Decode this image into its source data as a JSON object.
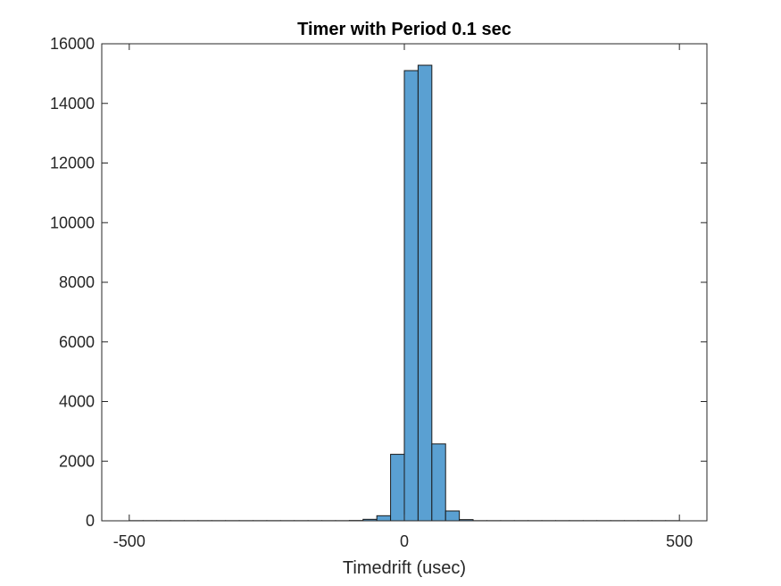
{
  "chart_data": {
    "type": "bar",
    "subtype": "histogram",
    "title": "Timer with Period 0.1 sec",
    "xlabel": "Timedrift (usec)",
    "ylabel": "",
    "xlim": [
      -550,
      550
    ],
    "ylim": [
      0,
      16000
    ],
    "xticks": [
      -500,
      0,
      500
    ],
    "xtick_labels": [
      "-500",
      "0",
      "500"
    ],
    "yticks": [
      0,
      2000,
      4000,
      6000,
      8000,
      10000,
      12000,
      14000,
      16000
    ],
    "ytick_labels": [
      "0",
      "2000",
      "4000",
      "6000",
      "8000",
      "10000",
      "12000",
      "14000",
      "16000"
    ],
    "bin_width": 25,
    "bin_edges_start": -500,
    "counts": [
      5,
      5,
      5,
      5,
      5,
      5,
      5,
      5,
      5,
      5,
      5,
      5,
      5,
      5,
      5,
      5,
      10,
      50,
      170,
      2230,
      15100,
      15280,
      2580,
      330,
      40,
      5,
      5,
      5,
      5,
      5,
      5,
      5,
      5,
      5,
      5,
      5,
      5,
      5,
      5,
      5
    ],
    "bar_color": "#5aa0d2",
    "edge_color": "#1a1a1a",
    "grid": false,
    "box": true
  }
}
